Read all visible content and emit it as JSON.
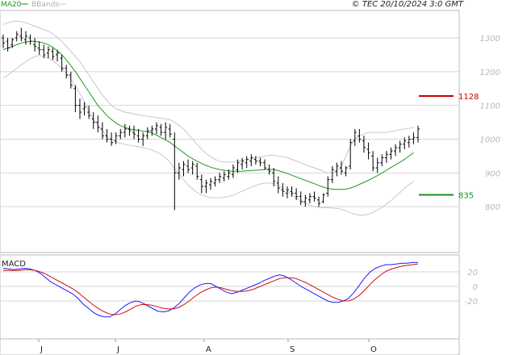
{
  "header": {
    "legend": [
      {
        "name": "MA20",
        "color": "#1e9a1e"
      },
      {
        "name": "BBands",
        "color": "#b0b0b0"
      }
    ],
    "copyright": "© TEC 20/10/2024 3:0 GMT"
  },
  "chart_data": [
    {
      "type": "candlestick",
      "title": "",
      "ylim": [
        700,
        1350
      ],
      "y_ticks": [
        800,
        900,
        1000,
        1100,
        1200,
        1300
      ],
      "x_ticks": [
        "J",
        "J",
        "A",
        "S",
        "O"
      ],
      "grid": true,
      "colors": {
        "bars": "#000000",
        "ma20": "#1e9a1e",
        "bbands": "#c8c8c8",
        "resistance": "#cc0000",
        "support": "#1e8c1e"
      },
      "levels": [
        {
          "name": "1128",
          "value": 1128,
          "color": "#cc0000"
        },
        {
          "name": "835",
          "value": 835,
          "color": "#1e8c1e"
        }
      ],
      "ohlc": [
        [
          1300,
          1310,
          1270,
          1285
        ],
        [
          1290,
          1300,
          1260,
          1270
        ],
        [
          1280,
          1300,
          1270,
          1295
        ],
        [
          1300,
          1320,
          1290,
          1310
        ],
        [
          1305,
          1330,
          1290,
          1300
        ],
        [
          1295,
          1320,
          1280,
          1305
        ],
        [
          1300,
          1310,
          1280,
          1290
        ],
        [
          1280,
          1300,
          1260,
          1275
        ],
        [
          1270,
          1290,
          1250,
          1265
        ],
        [
          1265,
          1280,
          1240,
          1250
        ],
        [
          1255,
          1275,
          1240,
          1265
        ],
        [
          1260,
          1270,
          1235,
          1245
        ],
        [
          1250,
          1265,
          1230,
          1255
        ],
        [
          1240,
          1250,
          1200,
          1210
        ],
        [
          1210,
          1220,
          1180,
          1190
        ],
        [
          1190,
          1200,
          1150,
          1160
        ],
        [
          1150,
          1160,
          1080,
          1100
        ],
        [
          1100,
          1120,
          1060,
          1080
        ],
        [
          1090,
          1110,
          1070,
          1095
        ],
        [
          1080,
          1100,
          1060,
          1070
        ],
        [
          1060,
          1080,
          1030,
          1050
        ],
        [
          1050,
          1070,
          1020,
          1035
        ],
        [
          1030,
          1050,
          1000,
          1010
        ],
        [
          1010,
          1030,
          990,
          1000
        ],
        [
          1000,
          1020,
          980,
          990
        ],
        [
          995,
          1020,
          985,
          1010
        ],
        [
          1010,
          1030,
          1000,
          1020
        ],
        [
          1020,
          1045,
          1005,
          1030
        ],
        [
          1030,
          1040,
          1010,
          1025
        ],
        [
          1020,
          1040,
          1000,
          1015
        ],
        [
          1010,
          1030,
          990,
          1000
        ],
        [
          1000,
          1020,
          980,
          1010
        ],
        [
          1010,
          1035,
          1000,
          1025
        ],
        [
          1025,
          1040,
          1010,
          1030
        ],
        [
          1030,
          1050,
          1015,
          1040
        ],
        [
          1035,
          1045,
          1010,
          1020
        ],
        [
          1020,
          1050,
          1000,
          1035
        ],
        [
          1030,
          1045,
          1005,
          1015
        ],
        [
          1000,
          1020,
          790,
          900
        ],
        [
          900,
          930,
          880,
          915
        ],
        [
          910,
          935,
          890,
          925
        ],
        [
          920,
          940,
          900,
          910
        ],
        [
          915,
          935,
          895,
          925
        ],
        [
          920,
          930,
          880,
          890
        ],
        [
          880,
          895,
          840,
          860
        ],
        [
          860,
          880,
          840,
          870
        ],
        [
          865,
          885,
          850,
          875
        ],
        [
          870,
          890,
          860,
          880
        ],
        [
          880,
          900,
          870,
          890
        ],
        [
          885,
          905,
          875,
          895
        ],
        [
          890,
          910,
          880,
          900
        ],
        [
          895,
          925,
          885,
          915
        ],
        [
          910,
          940,
          900,
          930
        ],
        [
          925,
          945,
          910,
          935
        ],
        [
          930,
          950,
          915,
          940
        ],
        [
          935,
          955,
          920,
          945
        ],
        [
          940,
          950,
          925,
          935
        ],
        [
          935,
          945,
          920,
          930
        ],
        [
          930,
          940,
          910,
          915
        ],
        [
          910,
          925,
          895,
          905
        ],
        [
          900,
          915,
          860,
          875
        ],
        [
          870,
          890,
          840,
          855
        ],
        [
          850,
          870,
          830,
          845
        ],
        [
          840,
          860,
          825,
          850
        ],
        [
          845,
          860,
          830,
          840
        ],
        [
          840,
          855,
          820,
          830
        ],
        [
          830,
          845,
          805,
          815
        ],
        [
          815,
          835,
          800,
          825
        ],
        [
          820,
          840,
          810,
          830
        ],
        [
          830,
          845,
          815,
          825
        ],
        [
          820,
          830,
          800,
          810
        ],
        [
          815,
          840,
          810,
          835
        ],
        [
          840,
          890,
          830,
          880
        ],
        [
          880,
          920,
          870,
          910
        ],
        [
          905,
          930,
          890,
          920
        ],
        [
          915,
          935,
          895,
          905
        ],
        [
          900,
          920,
          890,
          915
        ],
        [
          920,
          1000,
          910,
          990
        ],
        [
          995,
          1030,
          980,
          1020
        ],
        [
          1010,
          1030,
          990,
          1000
        ],
        [
          995,
          1010,
          960,
          975
        ],
        [
          970,
          990,
          940,
          960
        ],
        [
          950,
          965,
          905,
          915
        ],
        [
          915,
          945,
          900,
          930
        ],
        [
          930,
          955,
          920,
          945
        ],
        [
          945,
          965,
          930,
          955
        ],
        [
          955,
          975,
          940,
          965
        ],
        [
          965,
          985,
          950,
          975
        ],
        [
          975,
          995,
          960,
          985
        ],
        [
          985,
          1005,
          970,
          995
        ],
        [
          990,
          1010,
          975,
          1000
        ],
        [
          1000,
          1020,
          985,
          1005
        ],
        [
          1005,
          1040,
          990,
          1030
        ]
      ],
      "ma20": [
        1265,
        1270,
        1275,
        1280,
        1285,
        1288,
        1290,
        1290,
        1288,
        1285,
        1280,
        1272,
        1262,
        1250,
        1235,
        1218,
        1200,
        1180,
        1160,
        1140,
        1120,
        1100,
        1085,
        1070,
        1058,
        1048,
        1040,
        1035,
        1030,
        1028,
        1026,
        1024,
        1022,
        1018,
        1012,
        1005,
        998,
        990,
        980,
        970,
        960,
        950,
        942,
        935,
        928,
        922,
        917,
        913,
        910,
        908,
        906,
        905,
        905,
        905,
        906,
        907,
        908,
        909,
        910,
        911,
        910,
        907,
        903,
        898,
        893,
        888,
        883,
        878,
        873,
        868,
        863,
        858,
        854,
        852,
        851,
        851,
        852,
        855,
        860,
        866,
        872,
        878,
        885,
        892,
        900,
        908,
        916,
        924,
        932,
        940,
        950,
        960
      ],
      "bb_upper": [
        1340,
        1345,
        1348,
        1350,
        1348,
        1345,
        1340,
        1335,
        1330,
        1325,
        1320,
        1312,
        1302,
        1290,
        1275,
        1260,
        1245,
        1230,
        1210,
        1190,
        1170,
        1150,
        1130,
        1115,
        1100,
        1090,
        1085,
        1080,
        1078,
        1075,
        1072,
        1070,
        1068,
        1066,
        1064,
        1062,
        1060,
        1058,
        1050,
        1040,
        1030,
        1015,
        1000,
        985,
        970,
        958,
        948,
        940,
        935,
        932,
        932,
        933,
        935,
        938,
        940,
        942,
        945,
        947,
        950,
        952,
        952,
        950,
        948,
        945,
        940,
        935,
        930,
        925,
        920,
        915,
        910,
        905,
        900,
        900,
        905,
        920,
        950,
        980,
        1000,
        1010,
        1015,
        1020,
        1020,
        1020,
        1020,
        1020,
        1022,
        1025,
        1028,
        1030,
        1032,
        1035
      ],
      "bb_lower": [
        1180,
        1190,
        1200,
        1210,
        1220,
        1230,
        1238,
        1245,
        1248,
        1245,
        1240,
        1232,
        1222,
        1210,
        1195,
        1178,
        1158,
        1135,
        1110,
        1085,
        1060,
        1040,
        1025,
        1010,
        1000,
        992,
        988,
        985,
        982,
        980,
        978,
        975,
        972,
        968,
        962,
        955,
        945,
        932,
        912,
        895,
        880,
        865,
        852,
        842,
        835,
        830,
        827,
        826,
        826,
        828,
        830,
        834,
        840,
        846,
        852,
        858,
        863,
        867,
        870,
        870,
        868,
        862,
        855,
        846,
        836,
        826,
        817,
        810,
        805,
        800,
        798,
        797,
        797,
        796,
        795,
        792,
        788,
        782,
        778,
        775,
        775,
        778,
        783,
        790,
        798,
        808,
        818,
        830,
        842,
        855,
        865,
        875
      ],
      "xlabel": "",
      "ylabel": ""
    },
    {
      "type": "line",
      "title": "MACD",
      "ylim": [
        -45,
        45
      ],
      "y_ticks": [
        20,
        0,
        -20
      ],
      "grid": true,
      "series": [
        {
          "name": "",
          "color": "#1a1aff",
          "values": [
            25,
            24,
            23,
            24,
            25,
            24,
            22,
            18,
            12,
            6,
            2,
            -2,
            -6,
            -10,
            -16,
            -24,
            -30,
            -36,
            -40,
            -42,
            -42,
            -38,
            -32,
            -26,
            -22,
            -20,
            -22,
            -26,
            -30,
            -34,
            -35,
            -34,
            -30,
            -24,
            -16,
            -8,
            -2,
            2,
            4,
            4,
            0,
            -4,
            -8,
            -10,
            -8,
            -5,
            -2,
            1,
            4,
            8,
            11,
            14,
            16,
            14,
            10,
            5,
            0,
            -4,
            -8,
            -12,
            -16,
            -20,
            -22,
            -22,
            -20,
            -16,
            -8,
            2,
            12,
            20,
            25,
            28,
            30,
            30,
            31,
            32,
            32,
            33,
            33
          ]
        },
        {
          "name": "",
          "color": "#d11010",
          "values": [
            22,
            22,
            22,
            22,
            23,
            23,
            22,
            20,
            17,
            13,
            9,
            5,
            1,
            -3,
            -8,
            -14,
            -20,
            -26,
            -31,
            -35,
            -38,
            -39,
            -38,
            -35,
            -31,
            -27,
            -25,
            -25,
            -26,
            -28,
            -30,
            -31,
            -31,
            -29,
            -25,
            -20,
            -14,
            -9,
            -5,
            -2,
            -1,
            -2,
            -4,
            -6,
            -7,
            -7,
            -6,
            -4,
            -1,
            2,
            5,
            8,
            11,
            12,
            12,
            11,
            8,
            5,
            1,
            -3,
            -7,
            -11,
            -15,
            -18,
            -20,
            -20,
            -17,
            -12,
            -5,
            3,
            10,
            16,
            21,
            24,
            26,
            28,
            29,
            30,
            31
          ]
        }
      ],
      "xlabel": "",
      "ylabel": ""
    }
  ]
}
